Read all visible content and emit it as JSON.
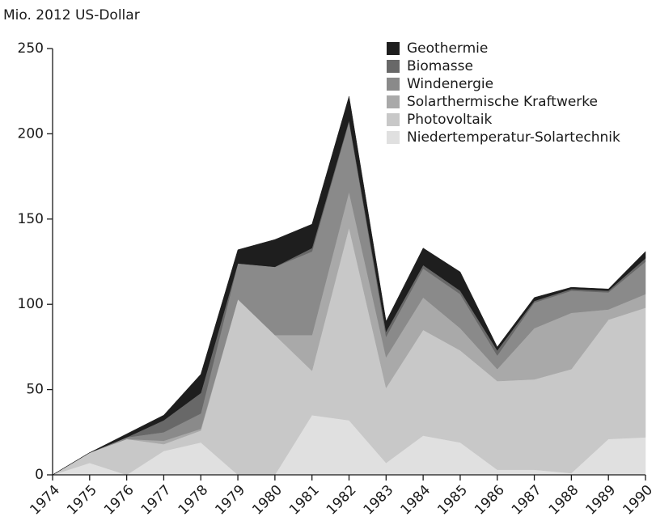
{
  "chart_data": {
    "type": "stacked_area",
    "y_label": "Mio. 2012 US-Dollar",
    "categories": [
      "1974",
      "1975",
      "1976",
      "1977",
      "1978",
      "1979",
      "1980",
      "1981",
      "1982",
      "1983",
      "1984",
      "1985",
      "1986",
      "1987",
      "1988",
      "1989",
      "1990"
    ],
    "series": [
      {
        "name": "Niedertemperatur-Solartechnik",
        "color": "#e0e0e0",
        "values": [
          0,
          7,
          0,
          14,
          19,
          0,
          0,
          35,
          32,
          7,
          23,
          19,
          3,
          3,
          1,
          21,
          22
        ]
      },
      {
        "name": "Photovoltaik",
        "color": "#c8c8c8",
        "values": [
          0,
          6,
          21,
          4,
          7,
          103,
          82,
          26,
          113,
          44,
          62,
          54,
          52,
          53,
          61,
          70,
          76
        ]
      },
      {
        "name": "Solarthermische Kraftwerke",
        "color": "#a9a9a9",
        "values": [
          0,
          0,
          0,
          2,
          1,
          0,
          0,
          21,
          21,
          18,
          19,
          13,
          7,
          30,
          33,
          6,
          8
        ]
      },
      {
        "name": "Windenergie",
        "color": "#8a8a8a",
        "values": [
          0,
          0,
          1,
          5,
          9,
          21,
          40,
          49,
          41,
          12,
          17,
          20,
          8,
          15,
          13,
          10,
          19
        ]
      },
      {
        "name": "Biomasse",
        "color": "#686868",
        "values": [
          0,
          0,
          0,
          7,
          12,
          0,
          0,
          2,
          1,
          3,
          2,
          2,
          3,
          1,
          1,
          1,
          2
        ]
      },
      {
        "name": "Geothermie",
        "color": "#1e1e1e",
        "values": [
          0,
          0,
          2,
          3,
          11,
          8,
          16,
          14,
          14,
          6,
          10,
          11,
          2,
          2,
          1,
          1,
          4
        ]
      }
    ],
    "ylim": [
      0,
      250
    ],
    "yticks": [
      0,
      50,
      100,
      150,
      200,
      250
    ],
    "legend": "top-right"
  }
}
